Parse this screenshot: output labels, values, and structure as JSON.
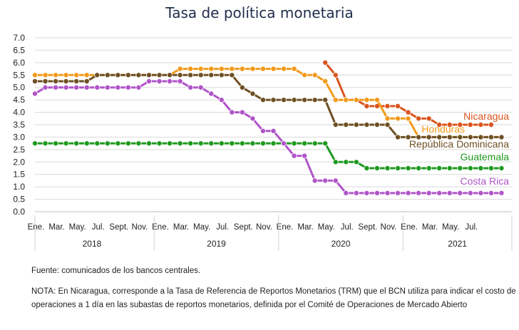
{
  "chart_data": {
    "type": "line",
    "title": "Tasa de política monetaria",
    "ylim": [
      0,
      7
    ],
    "yticks": [
      "0.0",
      "0.5",
      "1.0",
      "1.5",
      "2.0",
      "2.5",
      "3.0",
      "3.5",
      "4.0",
      "4.5",
      "5.0",
      "5.5",
      "6.0",
      "6.5",
      "7.0"
    ],
    "x_month_labels": [
      "Ene.",
      "Mar.",
      "May.",
      "Jul.",
      "Sept.",
      "Nov.",
      "Ene.",
      "Mar.",
      "May.",
      "Jul.",
      "Sept.",
      "Nov.",
      "Ene.",
      "Mar.",
      "May.",
      "Jul.",
      "Sept.",
      "Nov.",
      "Ene.",
      "Mar.",
      "May.",
      "Jul."
    ],
    "x_year_labels": [
      "2018",
      "2019",
      "2020",
      "2021"
    ],
    "grid": "horizontal",
    "series": [
      {
        "name": "Nicaragua",
        "color": "#d9541e",
        "start_index": 28,
        "values": [
          6.0,
          5.5,
          4.5,
          4.5,
          4.25,
          4.25,
          4.25,
          4.25,
          4.0,
          3.75,
          3.75,
          3.5,
          3.5,
          3.5,
          3.5,
          3.5,
          3.5
        ]
      },
      {
        "name": "Honduras",
        "color": "#f29a1b",
        "start_index": 0,
        "values": [
          5.5,
          5.5,
          5.5,
          5.5,
          5.5,
          5.5,
          5.5,
          5.5,
          5.5,
          5.5,
          5.5,
          5.5,
          5.5,
          5.5,
          5.75,
          5.75,
          5.75,
          5.75,
          5.75,
          5.75,
          5.75,
          5.75,
          5.75,
          5.75,
          5.75,
          5.75,
          5.5,
          5.5,
          5.25,
          4.5,
          4.5,
          4.5,
          4.5,
          4.5,
          3.75,
          3.75,
          3.75,
          3.0,
          3.0,
          3.0,
          3.0,
          3.0,
          3.0,
          3.0,
          3.0,
          3.0
        ]
      },
      {
        "name": "República Dominicana",
        "color": "#6e5023",
        "start_index": 0,
        "values": [
          5.25,
          5.25,
          5.25,
          5.25,
          5.25,
          5.25,
          5.5,
          5.5,
          5.5,
          5.5,
          5.5,
          5.5,
          5.5,
          5.5,
          5.5,
          5.5,
          5.5,
          5.5,
          5.5,
          5.5,
          5.0,
          4.75,
          4.5,
          4.5,
          4.5,
          4.5,
          4.5,
          4.5,
          4.5,
          3.5,
          3.5,
          3.5,
          3.5,
          3.5,
          3.5,
          3.0,
          3.0,
          3.0,
          3.0,
          3.0,
          3.0,
          3.0,
          3.0,
          3.0,
          3.0,
          3.0
        ]
      },
      {
        "name": "Guatemala",
        "color": "#1f9a1f",
        "start_index": 0,
        "values": [
          2.75,
          2.75,
          2.75,
          2.75,
          2.75,
          2.75,
          2.75,
          2.75,
          2.75,
          2.75,
          2.75,
          2.75,
          2.75,
          2.75,
          2.75,
          2.75,
          2.75,
          2.75,
          2.75,
          2.75,
          2.75,
          2.75,
          2.75,
          2.75,
          2.75,
          2.75,
          2.75,
          2.75,
          2.75,
          2.0,
          2.0,
          2.0,
          1.75,
          1.75,
          1.75,
          1.75,
          1.75,
          1.75,
          1.75,
          1.75,
          1.75,
          1.75,
          1.75,
          1.75,
          1.75,
          1.75
        ]
      },
      {
        "name": "Costa Rica",
        "color": "#b055c8",
        "start_index": 0,
        "values": [
          4.75,
          5.0,
          5.0,
          5.0,
          5.0,
          5.0,
          5.0,
          5.0,
          5.0,
          5.0,
          5.0,
          5.25,
          5.25,
          5.25,
          5.25,
          5.0,
          5.0,
          4.75,
          4.5,
          4.0,
          4.0,
          3.75,
          3.25,
          3.25,
          2.75,
          2.25,
          2.25,
          1.25,
          1.25,
          1.25,
          0.75,
          0.75,
          0.75,
          0.75,
          0.75,
          0.75,
          0.75,
          0.75,
          0.75,
          0.75,
          0.75,
          0.75,
          0.75,
          0.75,
          0.75,
          0.75
        ]
      }
    ]
  },
  "source_text": "Fuente: comunicados de los bancos centrales.",
  "footnote_text": "NOTA: En Nicaragua, corresponde a la Tasa de Referencia de Reportos Monetarios (TRM) que el BCN utiliza para indicar el costo de operaciones a 1 día en las subastas de reportos monetarios, definida por el Comité de Operaciones de Mercado Abierto"
}
